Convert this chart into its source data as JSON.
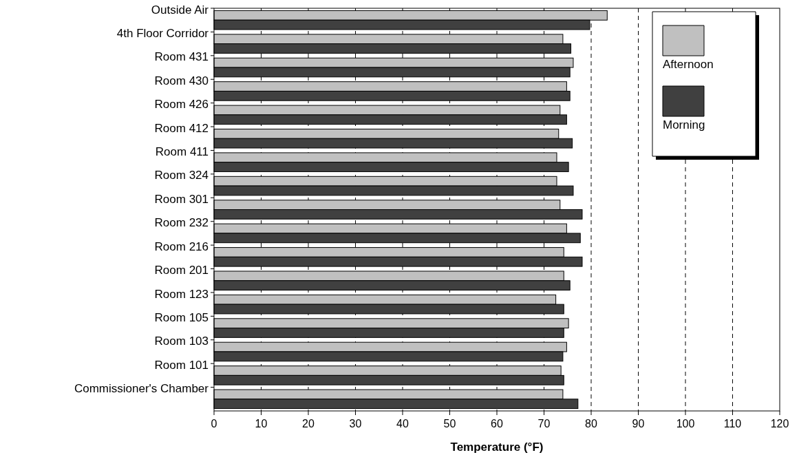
{
  "chart_data": {
    "type": "bar",
    "orientation": "horizontal",
    "xlabel": "Temperature (°F)",
    "categories": [
      "Outside Air",
      "4th Floor Corridor",
      "Room 431",
      "Room 430",
      "Room 426",
      "Room 412",
      "Room 411",
      "Room 324",
      "Room 301",
      "Room 232",
      "Room 216",
      "Room 201",
      "Room 123",
      "Room 105",
      "Room 103",
      "Room 101",
      "Commissioner's Chamber"
    ],
    "series": [
      {
        "name": "Afternoon",
        "color": "#c0c0c0",
        "values": [
          83.4,
          74.0,
          76.2,
          74.8,
          73.4,
          73.1,
          72.7,
          72.7,
          73.4,
          74.8,
          74.2,
          74.2,
          72.5,
          75.2,
          74.8,
          73.6,
          74.0
        ]
      },
      {
        "name": "Morning",
        "color": "#404040",
        "values": [
          79.7,
          75.7,
          75.5,
          75.5,
          74.8,
          76.0,
          75.2,
          76.2,
          78.1,
          77.7,
          78.1,
          75.5,
          74.2,
          74.2,
          74.0,
          74.2,
          77.2
        ]
      }
    ],
    "xlim": [
      0,
      120
    ],
    "xticks": [
      0,
      10,
      20,
      30,
      40,
      50,
      60,
      70,
      80,
      90,
      100,
      110,
      120
    ],
    "grid": "x",
    "line_style": "dashed",
    "legend": "top right"
  }
}
